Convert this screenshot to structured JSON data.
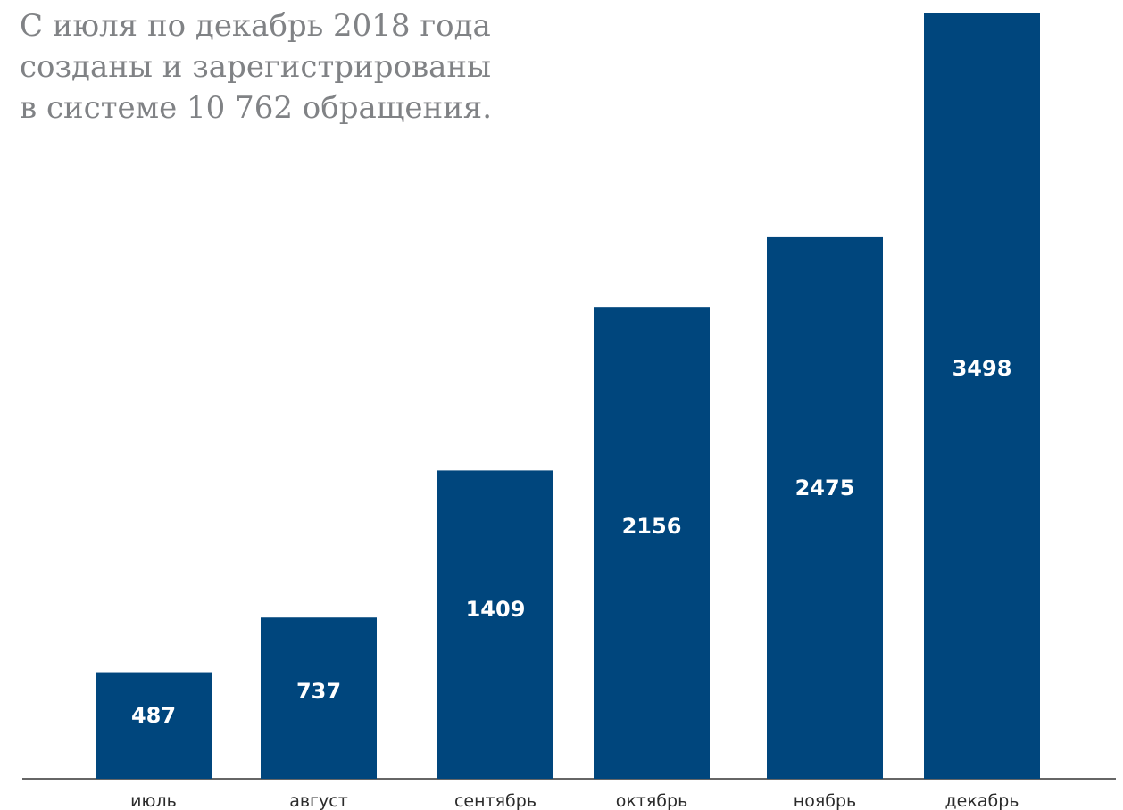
{
  "title_lines": [
    "С июля по декабрь 2018 года",
    "созданы и зарегистрированы",
    "в системе 10 762 обращения."
  ],
  "colors": {
    "bar": "#00467d",
    "value_label": "#ffffff",
    "title": "#808285",
    "axis": "#333333"
  },
  "chart_data": {
    "type": "bar",
    "categories": [
      "июль",
      "август",
      "сентябрь",
      "октябрь",
      "ноябрь",
      "декабрь"
    ],
    "values": [
      487,
      737,
      1409,
      2156,
      2475,
      3498
    ],
    "title": "С июля по декабрь 2018 года созданы и зарегистрированы в системе 10 762 обращения.",
    "xlabel": "",
    "ylabel": "",
    "grid": false,
    "legend": "none",
    "data_labels": true
  }
}
